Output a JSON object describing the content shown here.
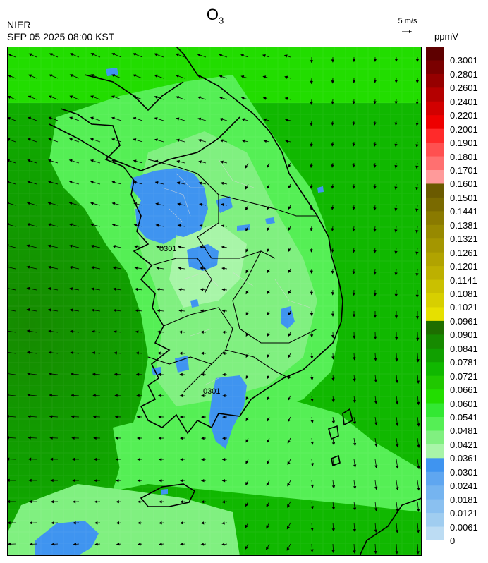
{
  "header": {
    "pollutant": "O",
    "pollutant_sub": "3",
    "organization": "NIER",
    "timestamp": "SEP 05 2025 08:00 KST",
    "wind_reference": "5 m/s",
    "unit": "ppmV"
  },
  "contour_labels": [
    "0301",
    "0301"
  ],
  "legend": {
    "labels": [
      "0.3001",
      "0.2801",
      "0.2601",
      "0.2401",
      "0.2201",
      "0.2001",
      "0.1901",
      "0.1801",
      "0.1701",
      "0.1601",
      "0.1501",
      "0.1441",
      "0.1381",
      "0.1321",
      "0.1261",
      "0.1201",
      "0.1141",
      "0.1081",
      "0.1021",
      "0.0961",
      "0.0901",
      "0.0841",
      "0.0781",
      "0.0721",
      "0.0661",
      "0.0601",
      "0.0541",
      "0.0481",
      "0.0421",
      "0.0361",
      "0.0301",
      "0.0241",
      "0.0181",
      "0.0121",
      "0.0061",
      "0"
    ],
    "colors": [
      "#5e0000",
      "#7a0000",
      "#960000",
      "#b40000",
      "#d20000",
      "#ee0000",
      "#ff2a2a",
      "#ff5050",
      "#ff7070",
      "#ff9a9a",
      "#6b5a00",
      "#7a6a00",
      "#8a7a00",
      "#978900",
      "#a49600",
      "#b1a300",
      "#bdb000",
      "#cac000",
      "#d7cf00",
      "#e6e000",
      "#1e6e00",
      "#168a00",
      "#10a000",
      "#10b800",
      "#20c800",
      "#22dd00",
      "#33e833",
      "#55ef55",
      "#80f080",
      "#a8f5a8",
      "#3f94f0",
      "#5fa6f0",
      "#75b4f0",
      "#8ac0f0",
      "#a0cdf0",
      "#bcdcf3"
    ]
  }
}
